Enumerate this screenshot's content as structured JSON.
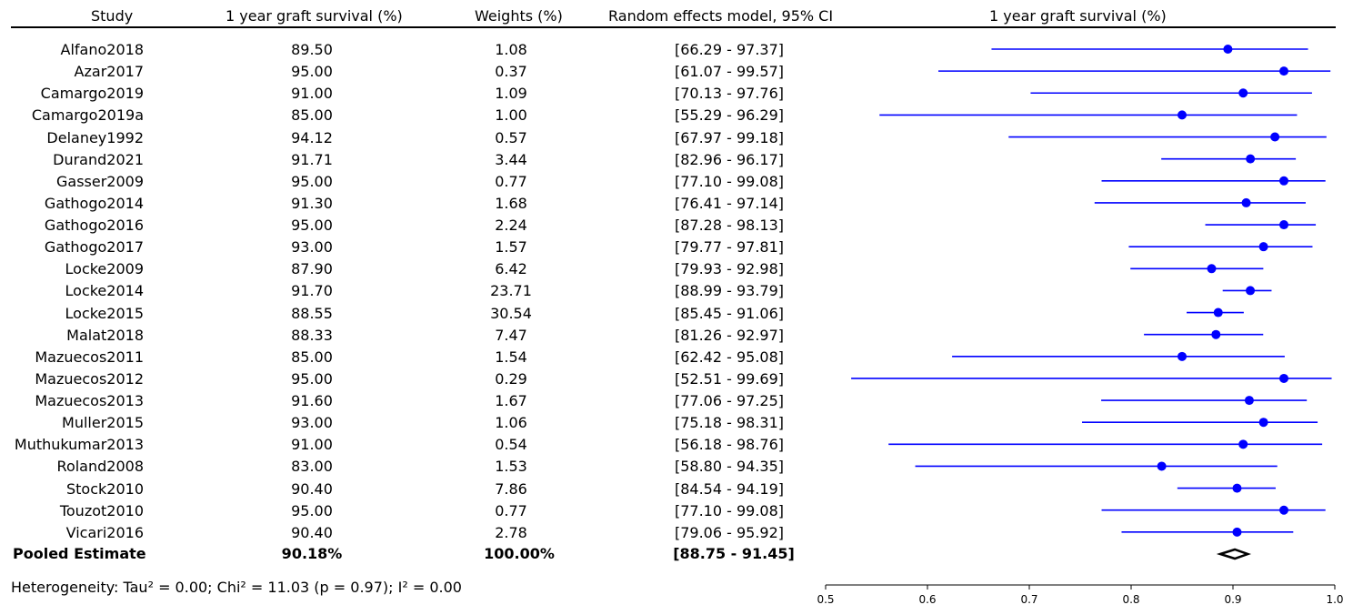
{
  "headers": {
    "study": "Study",
    "survival": "1 year graft survival (%)",
    "weights": "Weights (%)",
    "ci": "Random effects model, 95% CI",
    "plot_title": "1 year graft survival (%)"
  },
  "pooled": {
    "label": "Pooled Estimate",
    "survival": "90.18%",
    "weight": "100.00%",
    "ci": "[88.75 - 91.45]"
  },
  "heterogeneity": "Heterogeneity: Tau² = 0.00; Chi² = 11.03 (p = 0.97); I² = 0.00",
  "colors": {
    "marker": "#0000ff",
    "text": "#000000"
  },
  "chart_data": {
    "type": "forest",
    "xlabel": "",
    "xlim": [
      0.5,
      1.0
    ],
    "xticks": [
      "0.5",
      "0.6",
      "0.7",
      "0.8",
      "0.9",
      "1.0"
    ],
    "studies": [
      {
        "name": "Alfano2018",
        "survival": "89.50",
        "weight": "1.08",
        "ci": "[66.29 - 97.37]",
        "est": 0.895,
        "lo": 0.6629,
        "hi": 0.9737
      },
      {
        "name": "Azar2017",
        "survival": "95.00",
        "weight": "0.37",
        "ci": "[61.07 - 99.57]",
        "est": 0.95,
        "lo": 0.6107,
        "hi": 0.9957
      },
      {
        "name": "Camargo2019",
        "survival": "91.00",
        "weight": "1.09",
        "ci": "[70.13 - 97.76]",
        "est": 0.91,
        "lo": 0.7013,
        "hi": 0.9776
      },
      {
        "name": "Camargo2019a",
        "survival": "85.00",
        "weight": "1.00",
        "ci": "[55.29 - 96.29]",
        "est": 0.85,
        "lo": 0.5529,
        "hi": 0.9629
      },
      {
        "name": "Delaney1992",
        "survival": "94.12",
        "weight": "0.57",
        "ci": "[67.97 - 99.18]",
        "est": 0.9412,
        "lo": 0.6797,
        "hi": 0.9918
      },
      {
        "name": "Durand2021",
        "survival": "91.71",
        "weight": "3.44",
        "ci": "[82.96 - 96.17]",
        "est": 0.9171,
        "lo": 0.8296,
        "hi": 0.9617
      },
      {
        "name": "Gasser2009",
        "survival": "95.00",
        "weight": "0.77",
        "ci": "[77.10 - 99.08]",
        "est": 0.95,
        "lo": 0.771,
        "hi": 0.9908
      },
      {
        "name": "Gathogo2014",
        "survival": "91.30",
        "weight": "1.68",
        "ci": "[76.41 - 97.14]",
        "est": 0.913,
        "lo": 0.7641,
        "hi": 0.9714
      },
      {
        "name": "Gathogo2016",
        "survival": "95.00",
        "weight": "2.24",
        "ci": "[87.28 - 98.13]",
        "est": 0.95,
        "lo": 0.8728,
        "hi": 0.9813
      },
      {
        "name": "Gathogo2017",
        "survival": "93.00",
        "weight": "1.57",
        "ci": "[79.77 - 97.81]",
        "est": 0.93,
        "lo": 0.7977,
        "hi": 0.9781
      },
      {
        "name": "Locke2009",
        "survival": "87.90",
        "weight": "6.42",
        "ci": "[79.93 - 92.98]",
        "est": 0.879,
        "lo": 0.7993,
        "hi": 0.9298
      },
      {
        "name": "Locke2014",
        "survival": "91.70",
        "weight": "23.71",
        "ci": "[88.99 - 93.79]",
        "est": 0.917,
        "lo": 0.8899,
        "hi": 0.9379
      },
      {
        "name": "Locke2015",
        "survival": "88.55",
        "weight": "30.54",
        "ci": "[85.45 - 91.06]",
        "est": 0.8855,
        "lo": 0.8545,
        "hi": 0.9106
      },
      {
        "name": "Malat2018",
        "survival": "88.33",
        "weight": "7.47",
        "ci": "[81.26 - 92.97]",
        "est": 0.8833,
        "lo": 0.8126,
        "hi": 0.9297
      },
      {
        "name": "Mazuecos2011",
        "survival": "85.00",
        "weight": "1.54",
        "ci": "[62.42 - 95.08]",
        "est": 0.85,
        "lo": 0.6242,
        "hi": 0.9508
      },
      {
        "name": "Mazuecos2012",
        "survival": "95.00",
        "weight": "0.29",
        "ci": "[52.51 - 99.69]",
        "est": 0.95,
        "lo": 0.5251,
        "hi": 0.9969
      },
      {
        "name": "Mazuecos2013",
        "survival": "91.60",
        "weight": "1.67",
        "ci": "[77.06 - 97.25]",
        "est": 0.916,
        "lo": 0.7706,
        "hi": 0.9725
      },
      {
        "name": "Muller2015",
        "survival": "93.00",
        "weight": "1.06",
        "ci": "[75.18 - 98.31]",
        "est": 0.93,
        "lo": 0.7518,
        "hi": 0.9831
      },
      {
        "name": "Muthukumar2013",
        "survival": "91.00",
        "weight": "0.54",
        "ci": "[56.18 - 98.76]",
        "est": 0.91,
        "lo": 0.5618,
        "hi": 0.9876
      },
      {
        "name": "Roland2008",
        "survival": "83.00",
        "weight": "1.53",
        "ci": "[58.80 - 94.35]",
        "est": 0.83,
        "lo": 0.588,
        "hi": 0.9435
      },
      {
        "name": "Stock2010",
        "survival": "90.40",
        "weight": "7.86",
        "ci": "[84.54 - 94.19]",
        "est": 0.904,
        "lo": 0.8454,
        "hi": 0.9419
      },
      {
        "name": "Touzot2010",
        "survival": "95.00",
        "weight": "0.77",
        "ci": "[77.10 - 99.08]",
        "est": 0.95,
        "lo": 0.771,
        "hi": 0.9908
      },
      {
        "name": "Vicari2016",
        "survival": "90.40",
        "weight": "2.78",
        "ci": "[79.06 - 95.92]",
        "est": 0.904,
        "lo": 0.7906,
        "hi": 0.9592
      }
    ],
    "pooled": {
      "est": 0.9018,
      "lo": 0.8875,
      "hi": 0.9145
    }
  }
}
